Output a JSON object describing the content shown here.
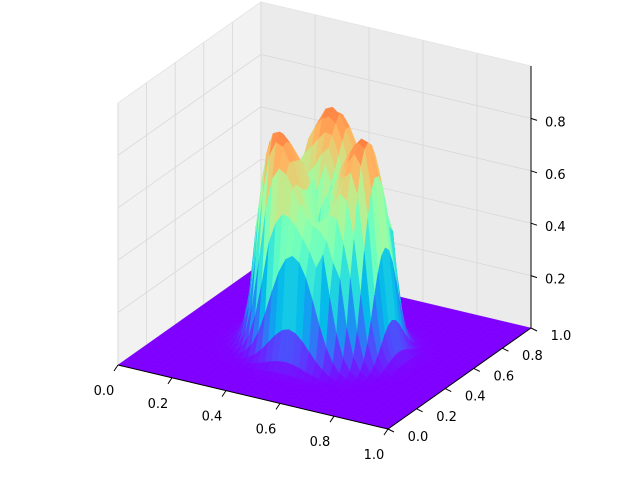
{
  "chart_data": {
    "type": "surface",
    "title": "",
    "xlabel": "",
    "ylabel": "",
    "zlabel": "",
    "xlim": [
      0,
      1
    ],
    "ylim": [
      0,
      1
    ],
    "zlim": [
      0,
      1
    ],
    "x_ticks": [
      "0.0",
      "0.2",
      "0.4",
      "0.6",
      "0.8",
      "1.0"
    ],
    "y_ticks": [
      "0.0",
      "0.2",
      "0.4",
      "0.6",
      "0.8",
      "1.0"
    ],
    "z_ticks": [
      "0.2",
      "0.4",
      "0.6",
      "0.8"
    ],
    "grid": true,
    "colormap": "rainbow",
    "surface": {
      "description_shape": "ring",
      "center": [
        0.5,
        0.5
      ],
      "ring_radius": 0.22,
      "plateau_height": 1.0,
      "floor_height": 0.0
    }
  }
}
